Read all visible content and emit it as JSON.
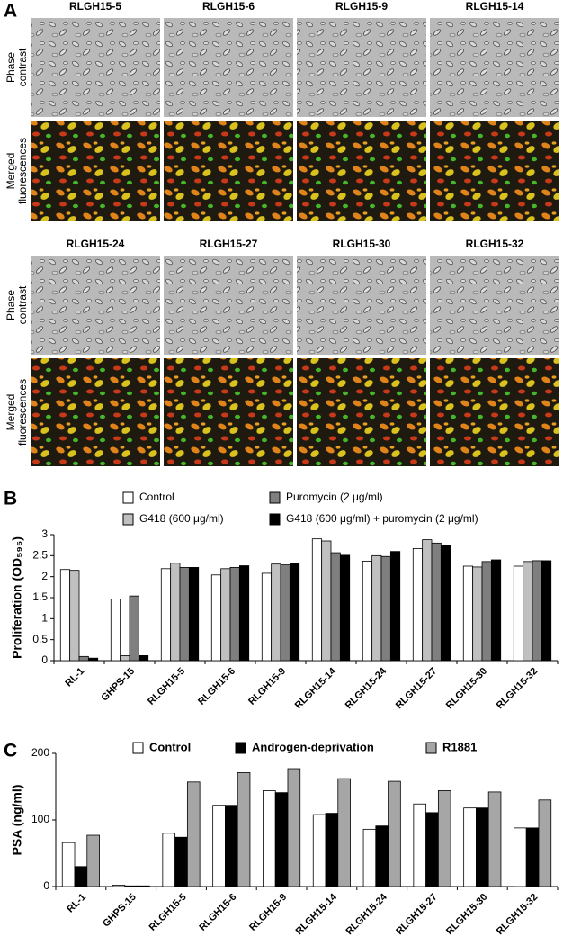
{
  "panel_a": {
    "label": "A",
    "row_labels": [
      [
        "Phase",
        "contrast"
      ],
      [
        "Merged",
        "fluorescences"
      ]
    ],
    "titles": [
      "RLGH15-5",
      "RLGH15-6",
      "RLGH15-9",
      "RLGH15-14",
      "RLGH15-24",
      "RLGH15-27",
      "RLGH15-30",
      "RLGH15-32"
    ]
  },
  "chart_data": [
    {
      "type": "bar",
      "panel_label": "B",
      "y_label": "Proliferation (OD₅₉₅)",
      "categories": [
        "RL-1",
        "GHPS-15",
        "RLGH15-5",
        "RLGH15-6",
        "RLGH15-9",
        "RLGH15-14",
        "RLGH15-24",
        "RLGH15-27",
        "RLGH15-30",
        "RLGH15-32"
      ],
      "series": [
        {
          "name": "Control",
          "color": "#ffffff",
          "values": [
            2.17,
            1.47,
            2.19,
            2.04,
            2.08,
            2.9,
            2.37,
            2.67,
            2.25,
            2.25
          ]
        },
        {
          "name": "G418 (600 μg/ml)",
          "color": "#c0c0c0",
          "values": [
            2.15,
            0.12,
            2.32,
            2.19,
            2.3,
            2.85,
            2.5,
            2.88,
            2.23,
            2.36
          ]
        },
        {
          "name": "Puromycin (2 μg/ml)",
          "color": "#7f7f7f",
          "values": [
            0.1,
            1.54,
            2.22,
            2.22,
            2.28,
            2.57,
            2.48,
            2.8,
            2.36,
            2.38
          ]
        },
        {
          "name": "G418 (600 μg/ml) + puromycin (2 μg/ml)",
          "color": "#000000",
          "values": [
            0.06,
            0.12,
            2.22,
            2.26,
            2.32,
            2.51,
            2.6,
            2.75,
            2.4,
            2.38
          ]
        }
      ],
      "ylim": [
        0,
        3
      ],
      "yticks": [
        0,
        0.5,
        1,
        1.5,
        2,
        2.5,
        3
      ]
    },
    {
      "type": "bar",
      "panel_label": "C",
      "y_label": "PSA (ng/ml)",
      "categories": [
        "RL-1",
        "GHPS-15",
        "RLGH15-5",
        "RLGH15-6",
        "RLGH15-9",
        "RLGH15-14",
        "RLGH15-24",
        "RLGH15-27",
        "RLGH15-30",
        "RLGH15-32"
      ],
      "series": [
        {
          "name": "Control",
          "color": "#ffffff",
          "values": [
            66,
            2,
            80,
            122,
            144,
            108,
            86,
            124,
            118,
            88
          ]
        },
        {
          "name": "Androgen-deprivation",
          "color": "#000000",
          "values": [
            30,
            1,
            74,
            122,
            141,
            110,
            91,
            111,
            118,
            88
          ]
        },
        {
          "name": "R1881",
          "color": "#a6a6a6",
          "values": [
            77,
            1,
            157,
            171,
            177,
            162,
            158,
            144,
            142,
            130
          ]
        }
      ],
      "ylim": [
        0,
        200
      ],
      "yticks": [
        0,
        100,
        200
      ]
    }
  ]
}
